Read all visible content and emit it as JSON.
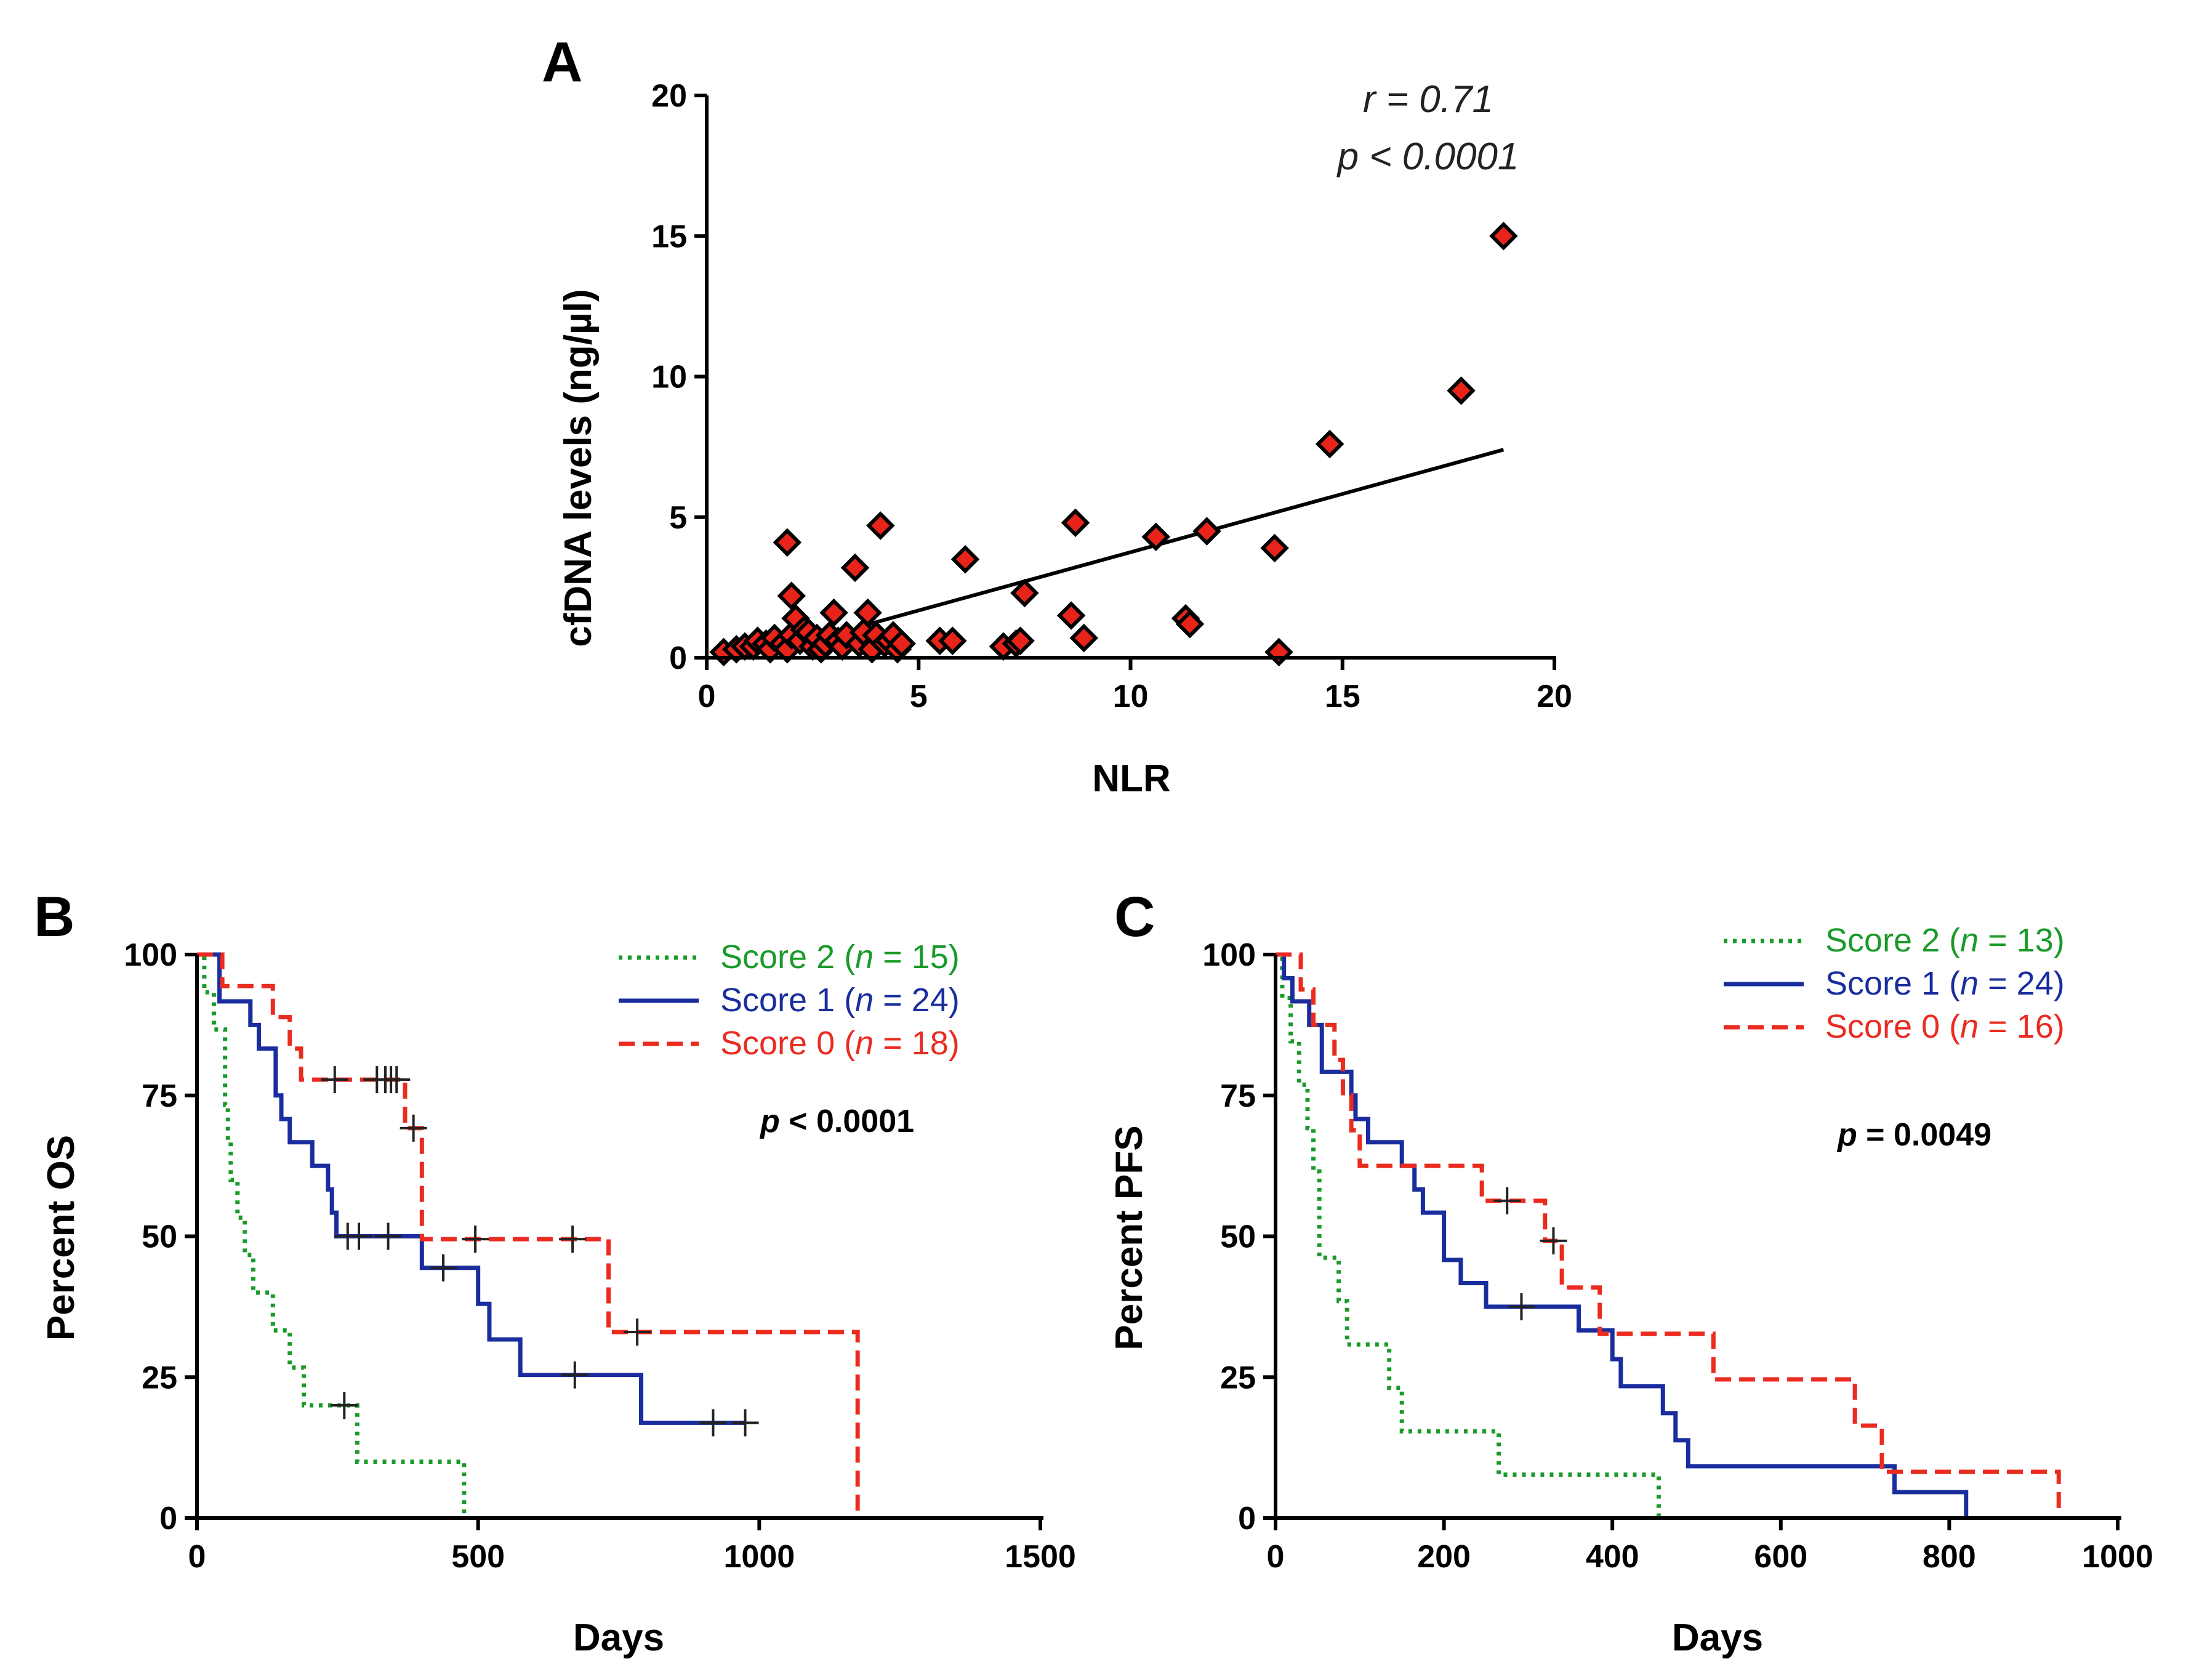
{
  "chart_data": [
    {
      "panel": "A",
      "type": "scatter",
      "title": "",
      "xlabel": "NLR",
      "ylabel": "cfDNA levels (ng/µl)",
      "xlim": [
        0,
        20
      ],
      "ylim": [
        0,
        20
      ],
      "xticks": [
        "0",
        "5",
        "10",
        "15",
        "20"
      ],
      "yticks": [
        "0",
        "5",
        "10",
        "15",
        "20"
      ],
      "annotation": {
        "r": "r = 0.71",
        "p": "p < 0.0001"
      },
      "marker_color": "#e8231a",
      "regression": {
        "x": [
          3.6,
          18.8
        ],
        "y": [
          1.1,
          7.4
        ]
      },
      "points": [
        [
          0.4,
          0.2
        ],
        [
          0.7,
          0.3
        ],
        [
          0.9,
          0.4
        ],
        [
          1.1,
          0.4
        ],
        [
          1.2,
          0.6
        ],
        [
          1.4,
          0.5
        ],
        [
          1.5,
          0.3
        ],
        [
          1.6,
          0.7
        ],
        [
          1.8,
          0.5
        ],
        [
          1.9,
          0.3
        ],
        [
          1.9,
          4.1
        ],
        [
          2.0,
          2.2
        ],
        [
          2.0,
          0.8
        ],
        [
          2.1,
          1.4
        ],
        [
          2.2,
          0.6
        ],
        [
          2.3,
          1.0
        ],
        [
          2.4,
          0.9
        ],
        [
          2.5,
          0.4
        ],
        [
          2.6,
          0.7
        ],
        [
          2.7,
          0.3
        ],
        [
          2.8,
          0.5
        ],
        [
          2.9,
          0.8
        ],
        [
          3.0,
          1.6
        ],
        [
          3.1,
          0.6
        ],
        [
          3.2,
          0.4
        ],
        [
          3.3,
          0.8
        ],
        [
          3.5,
          3.2
        ],
        [
          3.6,
          0.5
        ],
        [
          3.7,
          0.9
        ],
        [
          3.8,
          1.6
        ],
        [
          3.9,
          0.3
        ],
        [
          4.0,
          0.8
        ],
        [
          4.1,
          4.7
        ],
        [
          4.2,
          0.5
        ],
        [
          4.3,
          0.6
        ],
        [
          4.4,
          0.8
        ],
        [
          4.5,
          0.3
        ],
        [
          4.6,
          0.5
        ],
        [
          5.5,
          0.6
        ],
        [
          5.8,
          0.6
        ],
        [
          6.1,
          3.5
        ],
        [
          7.0,
          0.4
        ],
        [
          7.3,
          0.5
        ],
        [
          7.4,
          0.6
        ],
        [
          7.5,
          2.3
        ],
        [
          8.6,
          1.5
        ],
        [
          8.7,
          4.8
        ],
        [
          8.9,
          0.7
        ],
        [
          10.6,
          4.3
        ],
        [
          11.3,
          1.4
        ],
        [
          11.4,
          1.2
        ],
        [
          11.8,
          4.5
        ],
        [
          13.4,
          3.9
        ],
        [
          13.5,
          0.2
        ],
        [
          14.7,
          7.6
        ],
        [
          17.8,
          9.5
        ],
        [
          18.8,
          15.0
        ]
      ]
    },
    {
      "panel": "B",
      "type": "line",
      "title": "",
      "xlabel": "Days",
      "ylabel": "Percent OS",
      "xlim": [
        0,
        1500
      ],
      "ylim": [
        0,
        100
      ],
      "xticks": [
        "0",
        "500",
        "1000",
        "1500"
      ],
      "yticks": [
        "0",
        "25",
        "50",
        "75",
        "100"
      ],
      "pvalue": {
        "p": "p",
        "rest": " < 0.0001"
      },
      "series": [
        {
          "name": "Score 2",
          "n": "15",
          "color": "#1a9a2a",
          "dash": "dotted",
          "steps": [
            [
              0,
              100
            ],
            [
              13,
              93.3
            ],
            [
              30,
              86.7
            ],
            [
              50,
              73.3
            ],
            [
              55,
              66.7
            ],
            [
              60,
              60
            ],
            [
              72,
              53.3
            ],
            [
              85,
              46.7
            ],
            [
              100,
              40
            ],
            [
              135,
              33.3
            ],
            [
              165,
              26.7
            ],
            [
              190,
              20
            ],
            [
              285,
              10
            ],
            [
              475,
              0
            ]
          ],
          "censored": [
            [
              262,
              20
            ]
          ]
        },
        {
          "name": "Score 1",
          "n": "24",
          "color": "#1a2d9e",
          "dash": "solid",
          "steps": [
            [
              0,
              100
            ],
            [
              40,
              91.7
            ],
            [
              95,
              87.5
            ],
            [
              110,
              83.3
            ],
            [
              140,
              75
            ],
            [
              150,
              70.8
            ],
            [
              165,
              66.7
            ],
            [
              205,
              62.5
            ],
            [
              233,
              58.3
            ],
            [
              240,
              54.2
            ],
            [
              248,
              50
            ],
            [
              400,
              44.4
            ],
            [
              500,
              38
            ],
            [
              520,
              31.7
            ],
            [
              575,
              25.4
            ],
            [
              790,
              16.9
            ]
          ],
          "censored": [
            [
              268,
              50
            ],
            [
              288,
              50
            ],
            [
              340,
              50
            ],
            [
              438,
              44.4
            ],
            [
              672,
              25.4
            ],
            [
              918,
              16.9
            ],
            [
              975,
              16.9
            ]
          ]
        },
        {
          "name": "Score 0",
          "n": "18",
          "color": "#ea2b20",
          "dash": "dashed",
          "steps": [
            [
              0,
              100
            ],
            [
              45,
              94.4
            ],
            [
              135,
              88.9
            ],
            [
              165,
              83.3
            ],
            [
              185,
              77.8
            ],
            [
              370,
              69.2
            ],
            [
              400,
              49.5
            ],
            [
              732,
              33.0
            ],
            [
              1175,
              0
            ]
          ],
          "censored": [
            [
              245,
              77.8
            ],
            [
              320,
              77.8
            ],
            [
              335,
              77.8
            ],
            [
              345,
              77.8
            ],
            [
              355,
              77.8
            ],
            [
              385,
              69.2
            ],
            [
              495,
              49.5
            ],
            [
              668,
              49.5
            ],
            [
              783,
              33.0
            ]
          ]
        }
      ]
    },
    {
      "panel": "C",
      "type": "line",
      "title": "",
      "xlabel": "Days",
      "ylabel": "Percent PFS",
      "xlim": [
        0,
        1000
      ],
      "ylim": [
        0,
        100
      ],
      "xticks": [
        "0",
        "200",
        "400",
        "600",
        "800",
        "1000"
      ],
      "yticks": [
        "0",
        "25",
        "50",
        "75",
        "100"
      ],
      "pvalue": {
        "p": "p",
        "rest": " = 0.0049"
      },
      "series": [
        {
          "name": "Score 2",
          "n": "13",
          "color": "#1a9a2a",
          "dash": "dotted",
          "steps": [
            [
              0,
              100
            ],
            [
              8,
              92.3
            ],
            [
              18,
              84.6
            ],
            [
              28,
              76.9
            ],
            [
              38,
              69.2
            ],
            [
              45,
              61.5
            ],
            [
              52,
              46.2
            ],
            [
              75,
              38.5
            ],
            [
              85,
              30.8
            ],
            [
              135,
              23.1
            ],
            [
              150,
              15.4
            ],
            [
              170,
              15.4
            ],
            [
              265,
              7.7
            ],
            [
              455,
              0
            ]
          ],
          "censored": []
        },
        {
          "name": "Score 1",
          "n": "24",
          "color": "#1a2d9e",
          "dash": "solid",
          "steps": [
            [
              0,
              100
            ],
            [
              10,
              95.8
            ],
            [
              20,
              91.7
            ],
            [
              40,
              87.5
            ],
            [
              55,
              79.2
            ],
            [
              90,
              75
            ],
            [
              95,
              70.8
            ],
            [
              110,
              66.7
            ],
            [
              150,
              62.5
            ],
            [
              165,
              58.3
            ],
            [
              175,
              54.2
            ],
            [
              200,
              45.8
            ],
            [
              220,
              41.7
            ],
            [
              250,
              37.5
            ],
            [
              360,
              33.3
            ],
            [
              400,
              28.2
            ],
            [
              410,
              23.4
            ],
            [
              460,
              18.6
            ],
            [
              475,
              13.8
            ],
            [
              490,
              9.2
            ],
            [
              735,
              4.6
            ],
            [
              820,
              0
            ]
          ],
          "censored": [
            [
              292,
              37.5
            ]
          ]
        },
        {
          "name": "Score 0",
          "n": "16",
          "color": "#ea2b20",
          "dash": "dashed",
          "steps": [
            [
              0,
              100
            ],
            [
              30,
              93.8
            ],
            [
              45,
              87.5
            ],
            [
              70,
              81.3
            ],
            [
              80,
              75
            ],
            [
              90,
              68.8
            ],
            [
              100,
              62.5
            ],
            [
              245,
              56.3
            ],
            [
              320,
              49.2
            ],
            [
              340,
              40.9
            ],
            [
              385,
              32.7
            ],
            [
              520,
              24.6
            ],
            [
              688,
              16.4
            ],
            [
              720,
              8.2
            ],
            [
              930,
              0
            ]
          ],
          "censored": [
            [
              275,
              56.3
            ],
            [
              330,
              49.2
            ]
          ]
        }
      ]
    }
  ]
}
